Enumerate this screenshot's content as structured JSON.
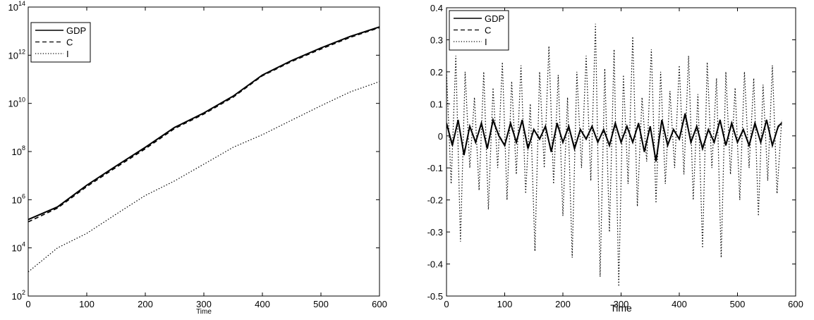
{
  "chart_data": [
    {
      "type": "line",
      "yscale": "log",
      "xlim": [
        0,
        600
      ],
      "ylim": [
        100,
        100000000000000
      ],
      "xlabel": "Time",
      "ylabel": "",
      "grid": false,
      "legend_position": "top-left",
      "x_ticks": [
        "0",
        "100",
        "200",
        "300",
        "400",
        "500",
        "600"
      ],
      "y_ticks": [
        {
          "base": "10",
          "exp": "2"
        },
        {
          "base": "10",
          "exp": "4"
        },
        {
          "base": "10",
          "exp": "6"
        },
        {
          "base": "10",
          "exp": "8"
        },
        {
          "base": "10",
          "exp": "10"
        },
        {
          "base": "10",
          "exp": "12"
        },
        {
          "base": "10",
          "exp": "14"
        }
      ],
      "y_tick_values": [
        100,
        10000,
        1000000,
        100000000,
        10000000000,
        1000000000000,
        100000000000000
      ],
      "x_tick_values": [
        0,
        100,
        200,
        300,
        400,
        500,
        600
      ],
      "series": [
        {
          "name": "GDP",
          "style": "solid",
          "color": "#000000",
          "x": [
            0,
            50,
            100,
            150,
            200,
            250,
            300,
            350,
            400,
            450,
            500,
            550,
            600
          ],
          "y": [
            150000,
            500000,
            4000000,
            25000000,
            150000000,
            1000000000,
            4000000000,
            20000000000,
            150000000000,
            600000000000,
            2000000000000,
            6000000000000,
            15000000000000
          ]
        },
        {
          "name": "C",
          "style": "dashed",
          "color": "#000000",
          "x": [
            0,
            50,
            100,
            150,
            200,
            250,
            300,
            350,
            400,
            450,
            500,
            550,
            600
          ],
          "y": [
            120000,
            450000,
            3500000,
            22000000,
            130000000,
            900000000,
            3600000000,
            18000000000,
            140000000000,
            550000000000,
            1800000000000,
            5500000000000,
            14000000000000
          ]
        },
        {
          "name": "I",
          "style": "dotted",
          "color": "#000000",
          "x": [
            0,
            50,
            100,
            150,
            200,
            250,
            300,
            350,
            400,
            450,
            500,
            550,
            600
          ],
          "y": [
            1000,
            10000,
            40000,
            250000,
            1500000,
            6000000,
            30000000,
            150000000,
            500000000,
            2000000000,
            8000000000,
            30000000000,
            80000000000
          ]
        }
      ]
    },
    {
      "type": "line",
      "yscale": "linear",
      "xlim": [
        0,
        600
      ],
      "ylim": [
        -0.5,
        0.4
      ],
      "xlabel": "Time",
      "ylabel": "",
      "grid": false,
      "legend_position": "top-left",
      "x_ticks": [
        "0",
        "100",
        "200",
        "300",
        "400",
        "500",
        "600"
      ],
      "x_tick_values": [
        0,
        100,
        200,
        300,
        400,
        500,
        600
      ],
      "y_ticks": [
        "-0.5",
        "-0.4",
        "-0.3",
        "-0.2",
        "-0.1",
        "0",
        "0.1",
        "0.2",
        "0.3",
        "0.4"
      ],
      "y_tick_values": [
        -0.5,
        -0.4,
        -0.3,
        -0.2,
        -0.1,
        0,
        0.1,
        0.2,
        0.3,
        0.4
      ],
      "series": [
        {
          "name": "GDP",
          "style": "solid",
          "color": "#000000",
          "x": [
            0,
            10,
            20,
            30,
            40,
            50,
            60,
            70,
            80,
            90,
            100,
            110,
            120,
            130,
            140,
            150,
            160,
            170,
            180,
            190,
            200,
            210,
            220,
            230,
            240,
            250,
            260,
            270,
            280,
            290,
            300,
            310,
            320,
            330,
            340,
            350,
            360,
            370,
            380,
            390,
            400,
            410,
            420,
            430,
            440,
            450,
            460,
            470,
            480,
            490,
            500,
            510,
            520,
            530,
            540,
            550,
            560,
            570,
            576
          ],
          "y": [
            0.04,
            -0.03,
            0.05,
            -0.06,
            0.03,
            -0.02,
            0.04,
            -0.04,
            0.05,
            0.0,
            -0.03,
            0.04,
            -0.02,
            0.05,
            -0.04,
            0.02,
            -0.01,
            0.03,
            -0.05,
            0.04,
            -0.02,
            0.03,
            -0.04,
            0.02,
            -0.01,
            0.03,
            -0.02,
            0.02,
            -0.03,
            0.04,
            -0.02,
            0.03,
            -0.02,
            0.04,
            -0.05,
            0.03,
            -0.08,
            0.05,
            -0.03,
            0.02,
            -0.01,
            0.07,
            -0.02,
            0.03,
            -0.04,
            0.02,
            -0.02,
            0.05,
            -0.03,
            0.04,
            -0.02,
            0.02,
            -0.03,
            0.04,
            -0.02,
            0.05,
            -0.03,
            0.03,
            0.04
          ]
        },
        {
          "name": "C",
          "style": "dashed",
          "color": "#000000",
          "x": [
            0,
            10,
            20,
            30,
            40,
            50,
            60,
            70,
            80,
            90,
            100,
            110,
            120,
            130,
            140,
            150,
            160,
            170,
            180,
            190,
            200,
            210,
            220,
            230,
            240,
            250,
            260,
            270,
            280,
            290,
            300,
            310,
            320,
            330,
            340,
            350,
            360,
            370,
            380,
            390,
            400,
            410,
            420,
            430,
            440,
            450,
            460,
            470,
            480,
            490,
            500,
            510,
            520,
            530,
            540,
            550,
            560,
            570,
            576
          ],
          "y": [
            0.035,
            -0.025,
            0.045,
            -0.055,
            0.028,
            -0.018,
            0.036,
            -0.036,
            0.046,
            0.002,
            -0.028,
            0.036,
            -0.018,
            0.046,
            -0.036,
            0.018,
            -0.008,
            0.028,
            -0.046,
            0.036,
            -0.018,
            0.028,
            -0.036,
            0.018,
            -0.008,
            0.028,
            -0.018,
            0.018,
            -0.028,
            0.036,
            -0.018,
            0.028,
            -0.018,
            0.036,
            -0.046,
            0.028,
            -0.075,
            0.046,
            -0.028,
            0.018,
            -0.008,
            0.065,
            -0.018,
            0.028,
            -0.036,
            0.018,
            -0.018,
            0.046,
            -0.028,
            0.036,
            -0.018,
            0.018,
            -0.028,
            0.036,
            -0.018,
            0.046,
            -0.028,
            0.028,
            0.036
          ]
        },
        {
          "name": "I",
          "style": "dotted",
          "color": "#000000",
          "x": [
            0,
            8,
            16,
            24,
            32,
            40,
            48,
            56,
            64,
            72,
            80,
            88,
            96,
            104,
            112,
            120,
            128,
            136,
            144,
            152,
            160,
            168,
            176,
            184,
            192,
            200,
            208,
            216,
            224,
            232,
            240,
            248,
            256,
            264,
            272,
            280,
            288,
            296,
            304,
            312,
            320,
            328,
            336,
            344,
            352,
            360,
            368,
            376,
            384,
            392,
            400,
            408,
            416,
            424,
            432,
            440,
            448,
            456,
            464,
            472,
            480,
            488,
            496,
            504,
            512,
            520,
            528,
            536,
            544,
            552,
            560,
            568,
            576
          ],
          "y": [
            0.2,
            -0.15,
            0.25,
            -0.33,
            0.2,
            -0.1,
            0.12,
            -0.17,
            0.2,
            -0.23,
            0.15,
            -0.1,
            0.23,
            -0.2,
            0.17,
            -0.12,
            0.22,
            -0.18,
            0.1,
            -0.36,
            0.2,
            -0.1,
            0.28,
            -0.15,
            0.19,
            -0.25,
            0.12,
            -0.38,
            0.2,
            -0.1,
            0.25,
            -0.14,
            0.35,
            -0.44,
            0.21,
            -0.3,
            0.27,
            -0.47,
            0.19,
            -0.15,
            0.31,
            -0.22,
            0.12,
            -0.08,
            0.27,
            -0.21,
            0.2,
            -0.15,
            0.14,
            -0.1,
            0.22,
            -0.12,
            0.25,
            -0.2,
            0.13,
            -0.35,
            0.23,
            -0.1,
            0.18,
            -0.38,
            0.2,
            -0.12,
            0.15,
            -0.2,
            0.2,
            -0.1,
            0.18,
            -0.25,
            0.16,
            -0.14,
            0.22,
            -0.18,
            0.05
          ]
        }
      ]
    }
  ]
}
